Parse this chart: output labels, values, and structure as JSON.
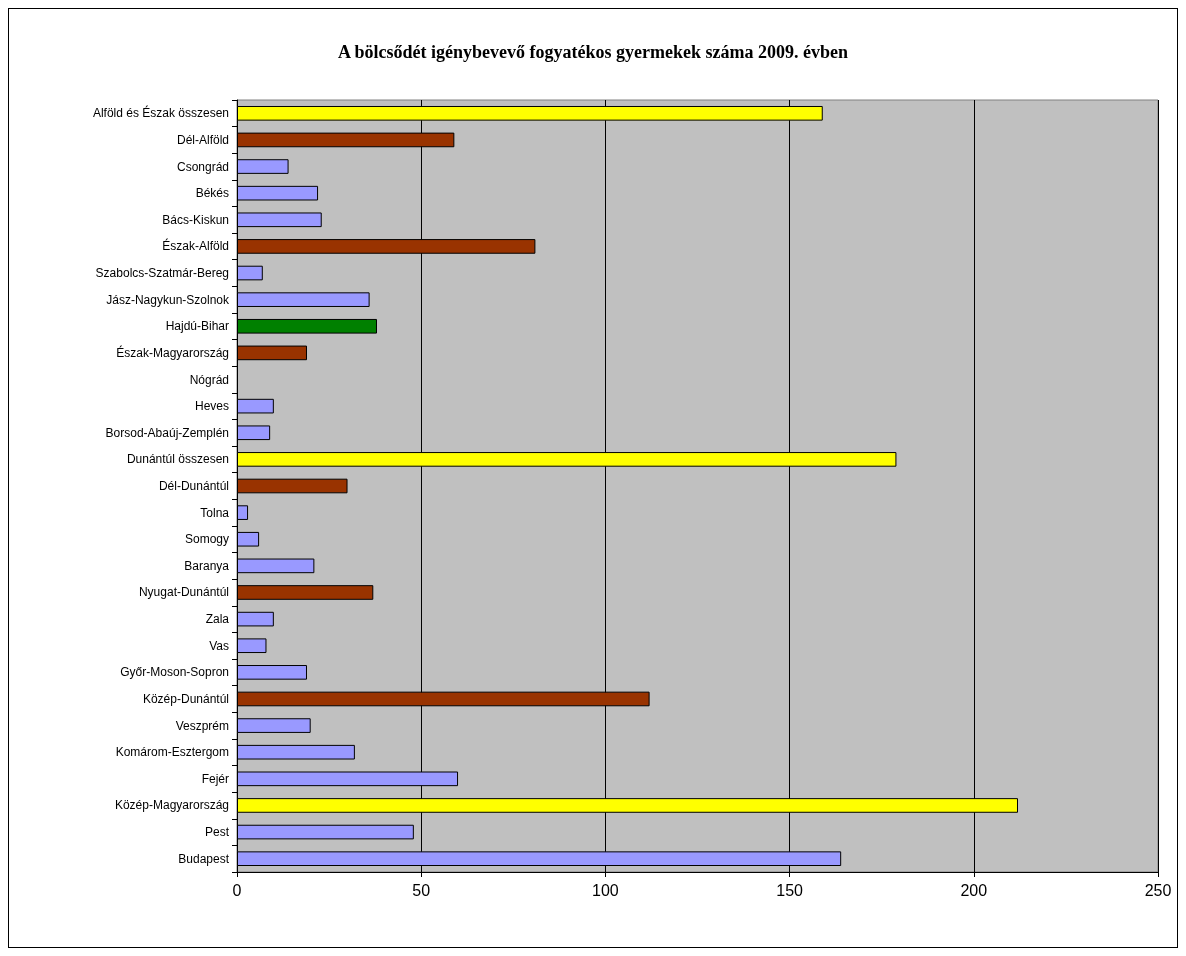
{
  "chart_data": {
    "type": "bar",
    "orientation": "horizontal",
    "title": "A bölcsődét igénybevevő fogyatékos gyermekek száma 2009. évben",
    "categories": [
      "Alföld és Észak összesen",
      "Dél-Alföld",
      "Csongrád",
      "Békés",
      "Bács-Kiskun",
      "Észak-Alföld",
      "Szabolcs-Szatmár-Bereg",
      "Jász-Nagykun-Szolnok",
      "Hajdú-Bihar",
      "Észak-Magyarország",
      "Nógrád",
      "Heves",
      "Borsod-Abaúj-Zemplén",
      "Dunántúl összesen",
      "Dél-Dunántúl",
      "Tolna",
      "Somogy",
      "Baranya",
      "Nyugat-Dunántúl",
      "Zala",
      "Vas",
      "Győr-Moson-Sopron",
      "Közép-Dunántúl",
      "Veszprém",
      "Komárom-Esztergom",
      "Fejér",
      "Közép-Magyarország",
      "Pest",
      "Budapest"
    ],
    "values": [
      159,
      59,
      14,
      22,
      23,
      81,
      7,
      36,
      38,
      19,
      0,
      10,
      9,
      179,
      30,
      3,
      6,
      21,
      37,
      10,
      8,
      19,
      112,
      20,
      32,
      60,
      212,
      48,
      164
    ],
    "colors": [
      "#ffff00",
      "#993300",
      "#9999ff",
      "#9999ff",
      "#9999ff",
      "#993300",
      "#9999ff",
      "#9999ff",
      "#008000",
      "#993300",
      "#9999ff",
      "#9999ff",
      "#9999ff",
      "#ffff00",
      "#993300",
      "#9999ff",
      "#9999ff",
      "#9999ff",
      "#993300",
      "#9999ff",
      "#9999ff",
      "#9999ff",
      "#993300",
      "#9999ff",
      "#9999ff",
      "#9999ff",
      "#ffff00",
      "#9999ff",
      "#9999ff"
    ],
    "xlim": [
      0,
      250
    ],
    "xticks": [
      0,
      50,
      100,
      150,
      200,
      250
    ],
    "grid": "x"
  }
}
